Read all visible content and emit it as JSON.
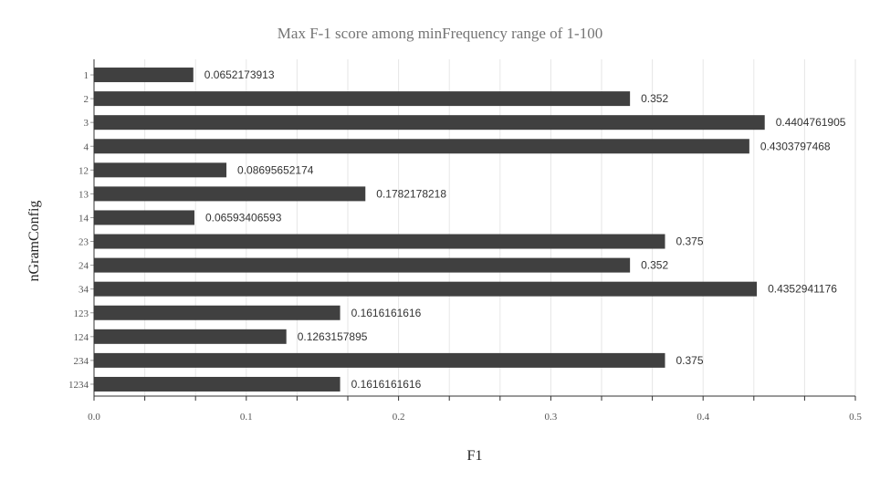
{
  "chart_data": {
    "type": "bar",
    "orientation": "horizontal",
    "title": "Max F-1 score among minFrequency range of 1-100",
    "xlabel": "F1",
    "ylabel": "nGramConfig",
    "xlim": [
      0,
      0.5
    ],
    "x_ticks": [
      "0.0",
      "0.1",
      "0.2",
      "0.3",
      "0.4",
      "0.5"
    ],
    "grid": true,
    "bar_color": "#404040",
    "categories": [
      "1",
      "2",
      "3",
      "4",
      "12",
      "13",
      "14",
      "23",
      "24",
      "34",
      "123",
      "124",
      "234",
      "1234"
    ],
    "values": [
      0.0652173913,
      0.352,
      0.4404761905,
      0.4303797468,
      0.08695652174,
      0.1782178218,
      0.06593406593,
      0.375,
      0.352,
      0.4352941176,
      0.1616161616,
      0.1263157895,
      0.375,
      0.1616161616
    ],
    "value_labels": [
      "0.0652173913",
      "0.352",
      "0.4404761905",
      "0.4303797468",
      "0.08695652174",
      "0.1782178218",
      "0.06593406593",
      "0.375",
      "0.352",
      "0.4352941176",
      "0.1616161616",
      "0.1263157895",
      "0.375",
      "0.1616161616"
    ]
  }
}
